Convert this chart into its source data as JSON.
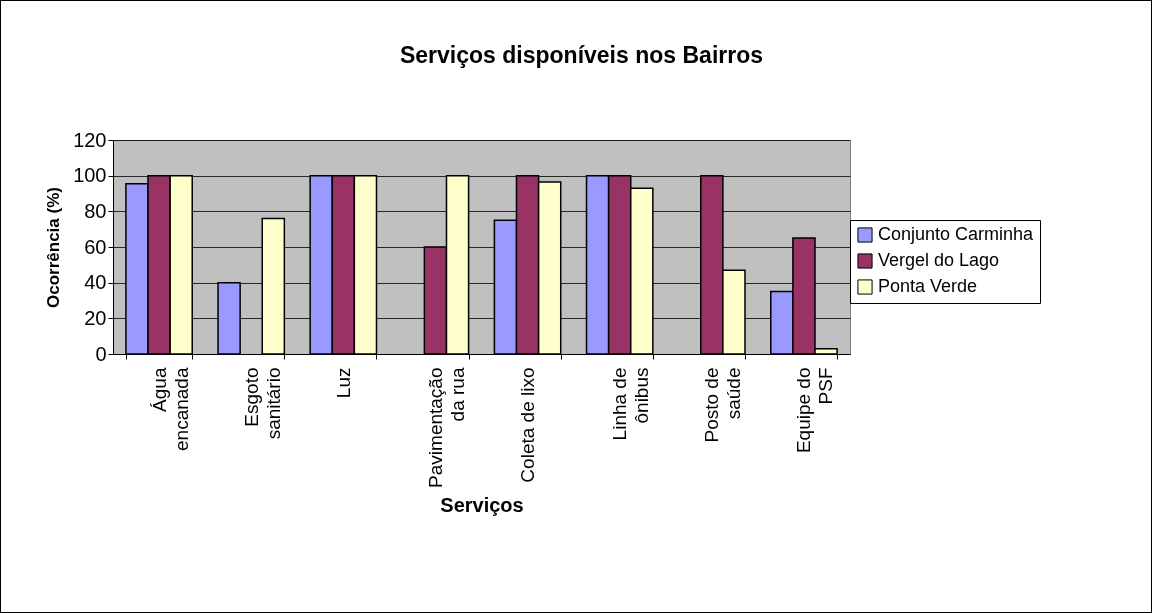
{
  "chart_data": {
    "type": "bar",
    "title": "Serviços disponíveis nos Bairros",
    "xlabel": "Serviços",
    "ylabel": "Ocorrência (%)",
    "categories": [
      "Água\nencanada",
      "Esgoto\nsanitário",
      "Luz",
      "Pavimentação\nda rua",
      "Coleta de lixo",
      "Linha de\nônibus",
      "Posto de\nsaúde",
      "Equipe do\nPSF"
    ],
    "series": [
      {
        "name": "Conjunto Carminha",
        "color": "#9999ff",
        "values": [
          95.5,
          40,
          100,
          null,
          75,
          100,
          null,
          35
        ]
      },
      {
        "name": "Vergel do Lago",
        "color": "#993366",
        "values": [
          100,
          null,
          100,
          60,
          100,
          100,
          100,
          65
        ]
      },
      {
        "name": "Ponta Verde",
        "color": "#ffffcc",
        "values": [
          100,
          76,
          100,
          100,
          96.5,
          93,
          47,
          3
        ]
      }
    ],
    "ylim": [
      0,
      120
    ],
    "yticks": [
      0,
      20,
      40,
      60,
      80,
      100,
      120
    ],
    "grid": "y",
    "legend": "right"
  }
}
